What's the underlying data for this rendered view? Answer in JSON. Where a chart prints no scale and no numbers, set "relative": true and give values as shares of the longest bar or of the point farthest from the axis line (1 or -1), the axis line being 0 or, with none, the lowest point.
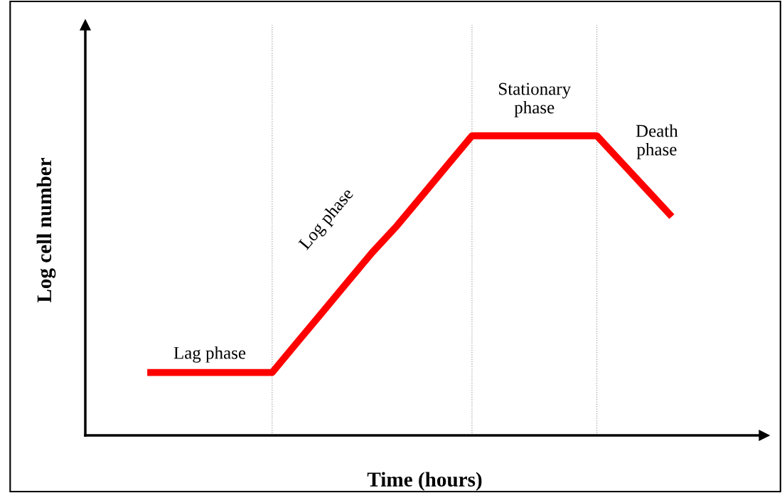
{
  "chart_data": {
    "type": "line",
    "relative": true,
    "xlabel": "Time (hours)",
    "ylabel": "Log cell number",
    "categories": [
      null,
      null,
      null,
      null,
      null,
      null,
      null,
      null,
      null,
      null,
      null,
      null,
      null,
      null,
      null,
      null,
      null,
      null,
      null,
      null,
      null,
      null
    ],
    "series": [
      {
        "color": "#ff0000",
        "values": [
          0.21,
          0.21,
          0.21,
          0.21,
          0.21,
          0.21,
          0.31,
          0.41,
          0.51,
          0.61,
          0.7,
          0.8,
          0.9,
          1.0,
          1.0,
          1.0,
          1.0,
          1.0,
          1.0,
          0.91,
          0.82,
          0.73
        ]
      }
    ],
    "annotations": [
      "Lag phase",
      "Log phase",
      "Stationary\nphase",
      "Death\nphase"
    ],
    "tick_labels": false,
    "grid": "x"
  }
}
